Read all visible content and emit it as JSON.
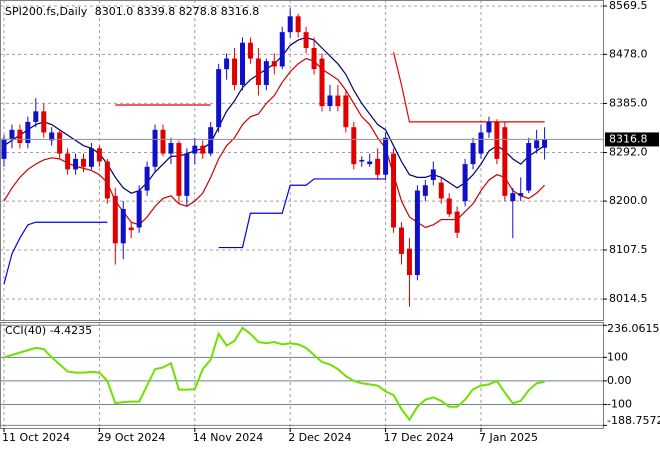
{
  "chart_data": [
    {
      "type": "candlestick",
      "title": "SPI200.fs,Daily",
      "header_labels": [
        "8301.0",
        "8339.8",
        "8278.8",
        "8316.8"
      ],
      "categories": [
        "11 Oct 2024",
        null,
        null,
        null,
        null,
        null,
        null,
        null,
        null,
        null,
        null,
        null,
        "29 Oct 2024",
        null,
        null,
        null,
        null,
        null,
        null,
        null,
        null,
        null,
        null,
        null,
        "14 Nov 2024",
        null,
        null,
        null,
        null,
        null,
        null,
        null,
        null,
        null,
        null,
        null,
        "2 Dec 2024",
        null,
        null,
        null,
        null,
        null,
        null,
        null,
        null,
        null,
        null,
        null,
        "17 Dec 2024",
        null,
        null,
        null,
        null,
        null,
        null,
        null,
        null,
        null,
        null,
        null,
        "7 Jan 2025",
        null,
        null,
        null,
        null,
        null,
        null,
        null,
        null
      ],
      "open": [
        8280,
        8318,
        8335,
        8310,
        8350,
        8370,
        8315,
        8330,
        8290,
        8260,
        8280,
        8265,
        8300,
        8275,
        8210,
        8120,
        8150,
        8150,
        8220,
        8265,
        8335,
        8290,
        8310,
        8210,
        8290,
        8305,
        8290,
        8340,
        8450,
        8470,
        8420,
        8500,
        8470,
        8420,
        8465,
        8455,
        8520,
        8550,
        8520,
        8490,
        8470,
        8380,
        8400,
        8400,
        8340,
        8275,
        8270,
        8280,
        8250,
        8290,
        8150,
        8110,
        8060,
        8210,
        8240,
        8235,
        8205,
        8180,
        8200,
        8270,
        8290,
        8330,
        8350,
        8340,
        8200,
        8210,
        8220,
        8300,
        8301
      ],
      "high": [
        8325,
        8345,
        8345,
        8360,
        8395,
        8385,
        8340,
        8335,
        8300,
        8290,
        8290,
        8310,
        8305,
        8280,
        8225,
        8200,
        8160,
        8230,
        8275,
        8345,
        8345,
        8320,
        8315,
        8300,
        8320,
        8315,
        8350,
        8460,
        8480,
        8490,
        8510,
        8510,
        8490,
        8470,
        8480,
        8530,
        8565,
        8555,
        8530,
        8510,
        8480,
        8420,
        8420,
        8410,
        8350,
        8285,
        8290,
        8300,
        8330,
        8300,
        8160,
        8130,
        8230,
        8240,
        8275,
        8245,
        8215,
        8190,
        8280,
        8320,
        8345,
        8360,
        8355,
        8350,
        8225,
        8245,
        8320,
        8335,
        8339.8
      ],
      "low": [
        8265,
        8300,
        8300,
        8300,
        8340,
        8320,
        8305,
        8280,
        8250,
        8250,
        8255,
        8260,
        8265,
        8195,
        8080,
        8090,
        8130,
        8140,
        8210,
        8255,
        8285,
        8270,
        8195,
        8190,
        8270,
        8280,
        8285,
        8330,
        8430,
        8410,
        8410,
        8460,
        8400,
        8410,
        8440,
        8450,
        8510,
        8510,
        8480,
        8440,
        8370,
        8370,
        8370,
        8330,
        8260,
        8265,
        8265,
        8240,
        8240,
        8140,
        8080,
        8000,
        8050,
        8200,
        8230,
        8195,
        8170,
        8130,
        8190,
        8260,
        8280,
        8320,
        8270,
        8200,
        8130,
        8200,
        8215,
        8290,
        8278.8
      ],
      "close": [
        8318,
        8335,
        8310,
        8350,
        8370,
        8330,
        8330,
        8290,
        8260,
        8280,
        8265,
        8300,
        8275,
        8205,
        8120,
        8185,
        8145,
        8220,
        8265,
        8335,
        8290,
        8310,
        8210,
        8290,
        8305,
        8290,
        8340,
        8450,
        8470,
        8420,
        8500,
        8470,
        8420,
        8465,
        8455,
        8520,
        8550,
        8520,
        8490,
        8450,
        8380,
        8400,
        8380,
        8340,
        8270,
        8278,
        8275,
        8250,
        8320,
        8150,
        8100,
        8060,
        8220,
        8230,
        8260,
        8205,
        8175,
        8140,
        8270,
        8310,
        8330,
        8350,
        8280,
        8210,
        8215,
        8215,
        8310,
        8315,
        8316.8
      ],
      "up_color": "#1010c8",
      "down_color": "#e00000",
      "series": [
        {
          "color": "#000070",
          "values": [
            8305,
            8315,
            8325,
            8335,
            8345,
            8350,
            8345,
            8335,
            8325,
            8315,
            8305,
            8300,
            8290,
            8270,
            8245,
            8225,
            8215,
            8220,
            8235,
            8255,
            8270,
            8285,
            8285,
            8290,
            8295,
            8300,
            8310,
            8340,
            8370,
            8390,
            8415,
            8430,
            8440,
            8450,
            8460,
            8475,
            8495,
            8505,
            8510,
            8505,
            8490,
            8475,
            8460,
            8440,
            8410,
            8385,
            8365,
            8345,
            8335,
            8305,
            8275,
            8250,
            8245,
            8245,
            8250,
            8245,
            8235,
            8225,
            8235,
            8250,
            8270,
            8295,
            8305,
            8295,
            8280,
            8270,
            8285,
            8295,
            8305
          ]
        },
        {
          "color": "#cc0000",
          "values": [
            8200,
            8225,
            8245,
            8260,
            8270,
            8278,
            8282,
            8280,
            8272,
            8266,
            8262,
            8258,
            8250,
            8235,
            8200,
            8180,
            8160,
            8155,
            8170,
            8190,
            8205,
            8210,
            8195,
            8190,
            8200,
            8215,
            8245,
            8280,
            8305,
            8320,
            8345,
            8360,
            8365,
            8385,
            8400,
            8425,
            8445,
            8460,
            8470,
            8465,
            8450,
            8440,
            8430,
            8410,
            8385,
            8360,
            8345,
            8320,
            8300,
            8250,
            8200,
            8170,
            8160,
            8150,
            8155,
            8165,
            8165,
            8165,
            8180,
            8195,
            8220,
            8240,
            8250,
            8245,
            8220,
            8210,
            8205,
            8215,
            8230
          ]
        },
        {
          "color": "#0000ee",
          "values": [
            8043,
            8100,
            8130,
            8155,
            8160,
            8160,
            8160,
            8160,
            8160,
            8160,
            8160,
            8160,
            8160,
            8160,
            null,
            null,
            null,
            null,
            null,
            null,
            null,
            null,
            null,
            null,
            null,
            null,
            null,
            8112,
            8112,
            8112,
            8112,
            8177,
            8177,
            8177,
            8177,
            8177,
            8230,
            8230,
            8230,
            8242,
            8242,
            8242,
            8242,
            8242,
            8242,
            8242,
            8242,
            8242,
            8242,
            null,
            null,
            null,
            null,
            null,
            null,
            null,
            null,
            null,
            null,
            null,
            null,
            null,
            null,
            null,
            null,
            null,
            null,
            null,
            null
          ]
        },
        {
          "color": "#ee0000",
          "values": [
            null,
            null,
            null,
            null,
            null,
            null,
            null,
            null,
            null,
            null,
            null,
            null,
            null,
            null,
            8382,
            8382,
            8382,
            8382,
            8382,
            8382,
            8382,
            8382,
            8382,
            8382,
            8382,
            8382,
            8382,
            null,
            null,
            null,
            null,
            null,
            null,
            null,
            null,
            null,
            null,
            null,
            null,
            null,
            null,
            null,
            null,
            null,
            null,
            null,
            null,
            null,
            null,
            8482,
            8420,
            8350,
            8350,
            8350,
            8350,
            8350,
            8350,
            8350,
            8350,
            8350,
            8350,
            8350,
            8350,
            8350,
            8350,
            8350,
            8350,
            8350,
            8350
          ]
        }
      ],
      "ylim": [
        7974.8,
        8580.9
      ],
      "yticks": [
        8569.5,
        {
          "value": 8478,
          "label": "8478.0"
        },
        {
          "value": 8385,
          "label": "8385.0"
        },
        {
          "value": 8292,
          "label": "8292.0"
        },
        {
          "value": 8200,
          "label": "8200.0"
        },
        8107.5,
        8014.5
      ],
      "grid": true
    },
    {
      "type": "line",
      "title": "CCI(40)",
      "color": "#70e000",
      "values": [
        100,
        110,
        120,
        130,
        140,
        135,
        100,
        70,
        40,
        35,
        35,
        38,
        35,
        0,
        -95,
        -90,
        -88,
        -88,
        -20,
        50,
        57,
        75,
        -37,
        -37,
        -35,
        50,
        90,
        200,
        150,
        170,
        225,
        200,
        165,
        160,
        165,
        155,
        160,
        155,
        140,
        110,
        80,
        70,
        50,
        20,
        0,
        -10,
        -15,
        -20,
        -45,
        -60,
        -120,
        -165,
        -110,
        -80,
        -70,
        -85,
        -110,
        -110,
        -80,
        -35,
        -20,
        -15,
        0,
        -50,
        -95,
        -85,
        -40,
        -10,
        -4.4235
      ],
      "ylim": [
        -200,
        250
      ],
      "yticks": [
        236.0615,
        100,
        {
          "value": 0,
          "label": "0.00"
        },
        -100,
        -188.7572
      ]
    }
  ]
}
